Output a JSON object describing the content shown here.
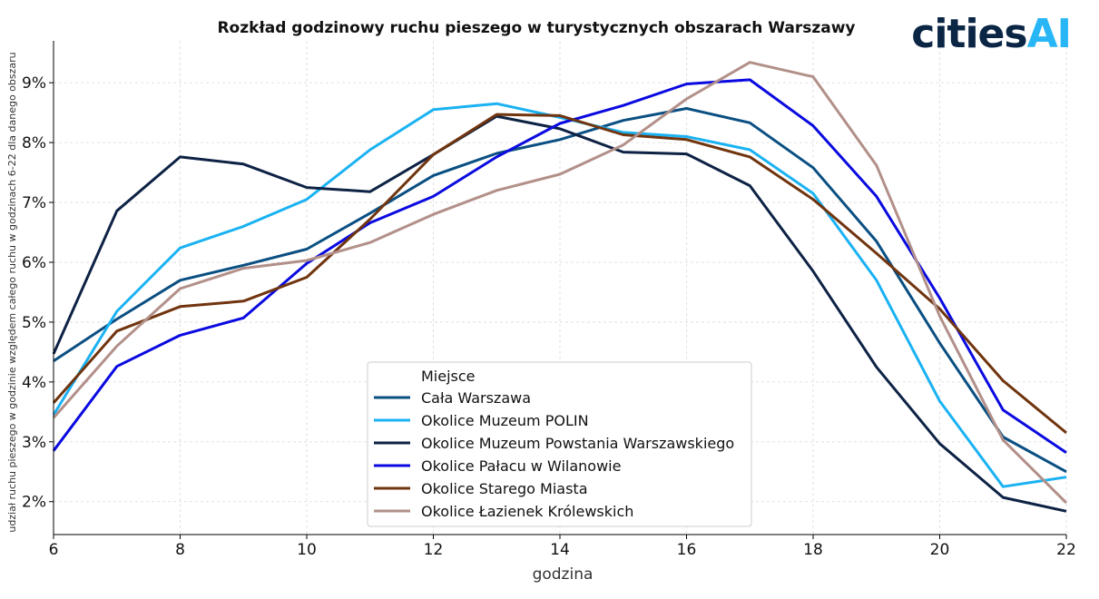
{
  "logo": {
    "text_main": "cities",
    "text_accent": "AI",
    "color_main": "#0b2545",
    "color_accent": "#29b6f6"
  },
  "chart_data": {
    "type": "line",
    "title": "Rozkład godzinowy ruchu pieszego w turystycznych obszarach Warszawy",
    "xlabel": "godzina",
    "ylabel": "udział ruchu pieszego w godzinie względem całego ruchu w godzinach 6-22 dla danego obszaru",
    "xlim": [
      6,
      22
    ],
    "ylim": [
      1.45,
      9.7
    ],
    "x_ticks": [
      6,
      8,
      10,
      12,
      14,
      16,
      18,
      20,
      22
    ],
    "y_ticks": [
      2,
      3,
      4,
      5,
      6,
      7,
      8,
      9
    ],
    "y_tick_suffix": "%",
    "grid": true,
    "legend_placement": "lower-center",
    "legend_title": "Miejsce",
    "x": [
      6,
      7,
      8,
      9,
      10,
      11,
      12,
      13,
      14,
      15,
      16,
      17,
      18,
      19,
      20,
      21,
      22
    ],
    "series": [
      {
        "name": "Cała Warszawa",
        "color": "#0a4f82",
        "values": [
          4.35,
          5.05,
          5.7,
          5.95,
          6.22,
          6.82,
          7.45,
          7.82,
          8.05,
          8.37,
          8.57,
          8.33,
          7.58,
          6.35,
          4.65,
          3.08,
          2.5
        ]
      },
      {
        "name": "Okolice Muzeum POLIN",
        "color": "#1ab2f2",
        "values": [
          3.45,
          5.18,
          6.24,
          6.6,
          7.05,
          7.88,
          8.55,
          8.65,
          8.42,
          8.17,
          8.1,
          7.88,
          7.15,
          5.7,
          3.68,
          2.25,
          2.41
        ]
      },
      {
        "name": "Okolice Muzeum Powstania Warszawskiego",
        "color": "#0d2244",
        "values": [
          4.47,
          6.86,
          7.76,
          7.64,
          7.25,
          7.18,
          7.8,
          8.44,
          8.23,
          7.84,
          7.81,
          7.28,
          5.85,
          4.25,
          2.97,
          2.07,
          1.84
        ]
      },
      {
        "name": "Okolice Pałacu w Wilanowie",
        "color": "#0a0ae0",
        "values": [
          2.85,
          4.26,
          4.78,
          5.07,
          5.98,
          6.66,
          7.1,
          7.76,
          8.32,
          8.62,
          8.98,
          9.05,
          8.28,
          7.1,
          5.4,
          3.53,
          2.82
        ]
      },
      {
        "name": "Okolice Starego Miasta",
        "color": "#70340e",
        "values": [
          3.65,
          4.85,
          5.26,
          5.35,
          5.75,
          6.72,
          7.8,
          8.47,
          8.45,
          8.13,
          8.05,
          7.76,
          7.05,
          6.15,
          5.22,
          4.02,
          3.15
        ]
      },
      {
        "name": "Okolice Łazienek Królewskich",
        "color": "#b29089",
        "values": [
          3.4,
          4.6,
          5.56,
          5.9,
          6.03,
          6.33,
          6.8,
          7.2,
          7.47,
          7.96,
          8.73,
          9.34,
          9.1,
          7.62,
          5.1,
          3.03,
          1.98
        ]
      }
    ]
  }
}
